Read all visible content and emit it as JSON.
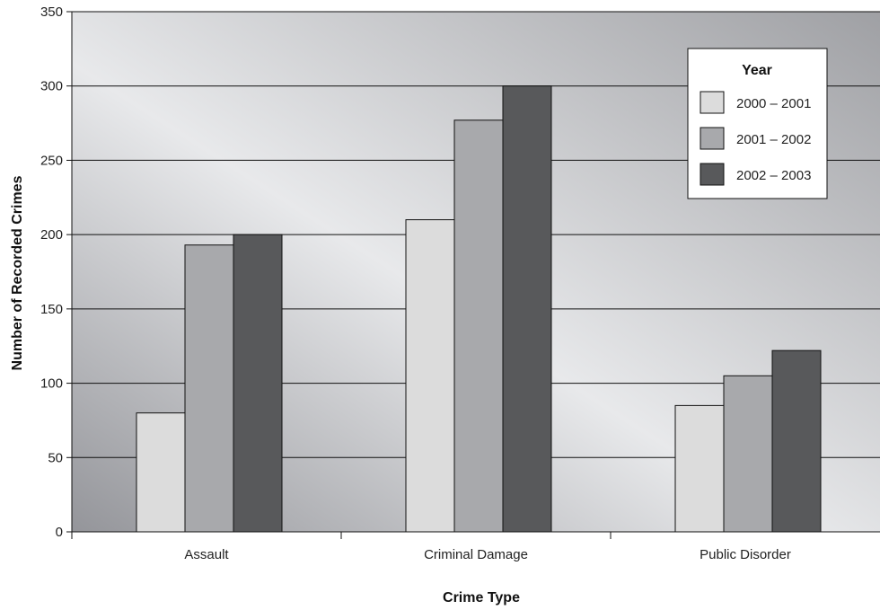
{
  "chart_data": {
    "type": "bar",
    "title": "",
    "xlabel": "Crime Type",
    "ylabel": "Number of Recorded Crimes",
    "categories": [
      "Assault",
      "Criminal Damage",
      "Public Disorder"
    ],
    "series": [
      {
        "name": "2000 – 2001",
        "values": [
          80,
          210,
          85
        ],
        "color": "#dcdcdc"
      },
      {
        "name": "2001 – 2002",
        "values": [
          193,
          277,
          105
        ],
        "color": "#a8a9ac"
      },
      {
        "name": "2002 – 2003",
        "values": [
          200,
          300,
          122
        ],
        "color": "#58595b"
      }
    ],
    "ylim": [
      0,
      350
    ],
    "yticks": [
      "0",
      "50",
      "100",
      "150",
      "200",
      "250",
      "300",
      "350"
    ],
    "grid": true,
    "legend": {
      "title": "Year",
      "position": "top-right"
    },
    "colors": {
      "plot_gradient": [
        "#9a9b9e",
        "#e6e7e9",
        "#a2a3a6"
      ],
      "gridline": "#111111",
      "bar_stroke": "#111111"
    }
  }
}
